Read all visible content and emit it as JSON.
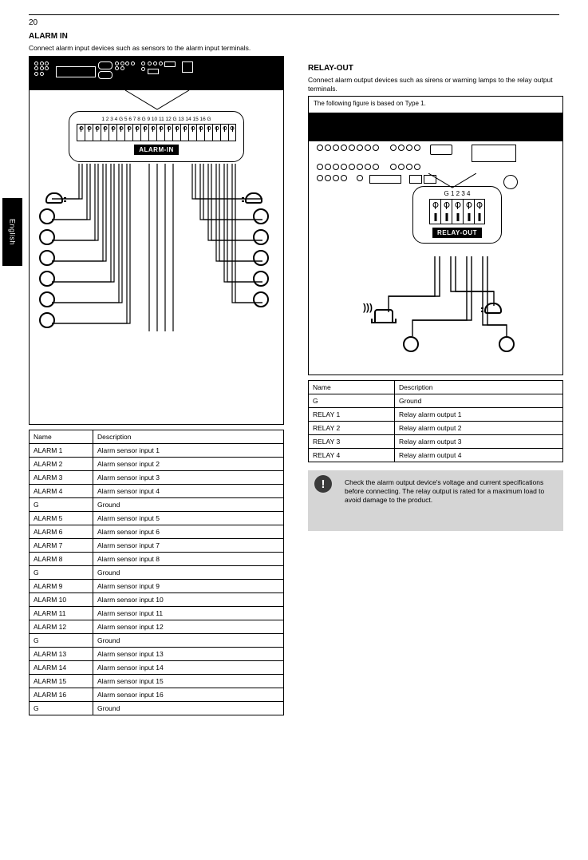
{
  "page_number": "20",
  "side_tab": "English",
  "left": {
    "title": "ALARM IN",
    "intro": "Connect alarm input devices such as sensors to the alarm input terminals.",
    "terminal_numbers": "1 2 3 4 G 5 6 7 8 G 9 10 11 12 G 13 14 15 16 G",
    "block_label": "ALARM-IN",
    "table": [
      [
        "Name",
        "Description"
      ],
      [
        "ALARM 1",
        "Alarm sensor input 1"
      ],
      [
        "ALARM 2",
        "Alarm sensor input 2"
      ],
      [
        "ALARM 3",
        "Alarm sensor input 3"
      ],
      [
        "ALARM 4",
        "Alarm sensor input 4"
      ],
      [
        "G",
        "Ground"
      ],
      [
        "ALARM 5",
        "Alarm sensor input 5"
      ],
      [
        "ALARM 6",
        "Alarm sensor input 6"
      ],
      [
        "ALARM 7",
        "Alarm sensor input 7"
      ],
      [
        "ALARM 8",
        "Alarm sensor input 8"
      ],
      [
        "G",
        "Ground"
      ],
      [
        "ALARM 9",
        "Alarm sensor input 9"
      ],
      [
        "ALARM 10",
        "Alarm sensor input 10"
      ],
      [
        "ALARM 11",
        "Alarm sensor input 11"
      ],
      [
        "ALARM 12",
        "Alarm sensor input 12"
      ],
      [
        "G",
        "Ground"
      ],
      [
        "ALARM 13",
        "Alarm sensor input 13"
      ],
      [
        "ALARM 14",
        "Alarm sensor input 14"
      ],
      [
        "ALARM 15",
        "Alarm sensor input 15"
      ],
      [
        "ALARM 16",
        "Alarm sensor input 16"
      ],
      [
        "G",
        "Ground"
      ]
    ]
  },
  "right": {
    "title": "RELAY-OUT",
    "intro1": "Connect alarm output devices such as sirens or warning lamps to the relay output terminals.",
    "diagram_header": "The following figure is based on Type 1.",
    "terminal_numbers": "G 1 2 3 4",
    "block_label": "RELAY-OUT",
    "table": [
      [
        "Name",
        "Description"
      ],
      [
        "G",
        "Ground"
      ],
      [
        "RELAY 1",
        "Relay alarm output 1"
      ],
      [
        "RELAY 2",
        "Relay alarm output 2"
      ],
      [
        "RELAY 3",
        "Relay alarm output 3"
      ],
      [
        "RELAY 4",
        "Relay alarm output 4"
      ]
    ],
    "caution": "Check the alarm output device's voltage and current specifications before connecting. The relay output is rated for a maximum load to avoid damage to the product."
  },
  "colors": {
    "black": "#000000",
    "white": "#ffffff",
    "caution_bg": "#d5d5d5",
    "caution_icon": "#3a3a3a"
  }
}
